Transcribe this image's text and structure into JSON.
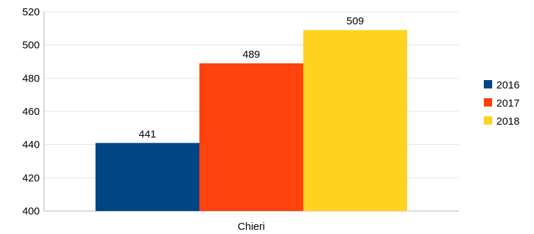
{
  "chart_data": {
    "type": "bar",
    "title": "",
    "xlabel": "",
    "ylabel": "",
    "categories": [
      "Chieri"
    ],
    "series": [
      {
        "name": "2016",
        "values": [
          441
        ],
        "color": "#004586"
      },
      {
        "name": "2017",
        "values": [
          489
        ],
        "color": "#ff420e"
      },
      {
        "name": "2018",
        "values": [
          509
        ],
        "color": "#ffd320"
      }
    ],
    "ylim": [
      400,
      520
    ],
    "yticks": [
      400,
      420,
      440,
      460,
      480,
      500,
      520
    ],
    "data_labels": [
      "441",
      "489",
      "509"
    ],
    "grid": true,
    "legend_position": "right"
  }
}
